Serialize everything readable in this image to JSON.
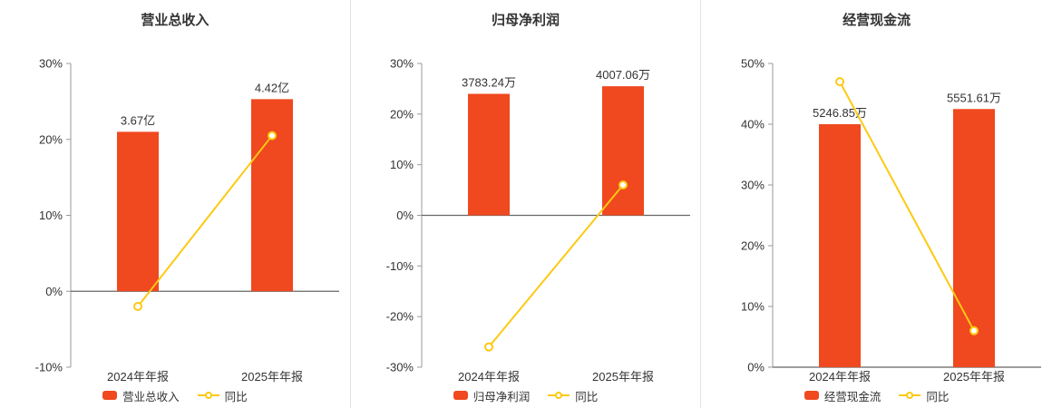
{
  "colors": {
    "bar": "#f0481f",
    "line": "#fdc913",
    "axis": "#999999",
    "zero_line": "#666666",
    "text": "#333333"
  },
  "chart_data": [
    {
      "type": "bar",
      "title": "营业总收入",
      "categories": [
        "2024年年报",
        "2025年年报"
      ],
      "ylim": [
        -10,
        30
      ],
      "yticks": [
        "30%",
        "20%",
        "10%",
        "0%",
        "-10%"
      ],
      "grid": false,
      "legend_position": "bottom",
      "series": [
        {
          "name": "营业总收入",
          "type": "bar",
          "values": [
            21,
            25.3
          ],
          "labels": [
            "3.67亿",
            "4.42亿"
          ],
          "color": "#f0481f"
        },
        {
          "name": "同比",
          "type": "line",
          "values": [
            -2,
            20.5
          ],
          "color": "#fdc913"
        }
      ]
    },
    {
      "type": "bar",
      "title": "归母净利润",
      "categories": [
        "2024年年报",
        "2025年年报"
      ],
      "ylim": [
        -30,
        30
      ],
      "yticks": [
        "30%",
        "20%",
        "10%",
        "0%",
        "-10%",
        "-20%",
        "-30%"
      ],
      "grid": false,
      "legend_position": "bottom",
      "series": [
        {
          "name": "归母净利润",
          "type": "bar",
          "values": [
            24,
            25.5
          ],
          "labels": [
            "3783.24万",
            "4007.06万"
          ],
          "color": "#f0481f"
        },
        {
          "name": "同比",
          "type": "line",
          "values": [
            -26,
            6
          ],
          "color": "#fdc913"
        }
      ]
    },
    {
      "type": "bar",
      "title": "经营现金流",
      "categories": [
        "2024年年报",
        "2025年年报"
      ],
      "ylim": [
        0,
        50
      ],
      "yticks": [
        "50%",
        "40%",
        "30%",
        "20%",
        "10%",
        "0%"
      ],
      "grid": false,
      "legend_position": "bottom",
      "series": [
        {
          "name": "经营现金流",
          "type": "bar",
          "values": [
            40,
            42.5
          ],
          "labels": [
            "5246.85万",
            "5551.61万"
          ],
          "color": "#f0481f"
        },
        {
          "name": "同比",
          "type": "line",
          "values": [
            47,
            6
          ],
          "color": "#fdc913"
        }
      ]
    }
  ]
}
